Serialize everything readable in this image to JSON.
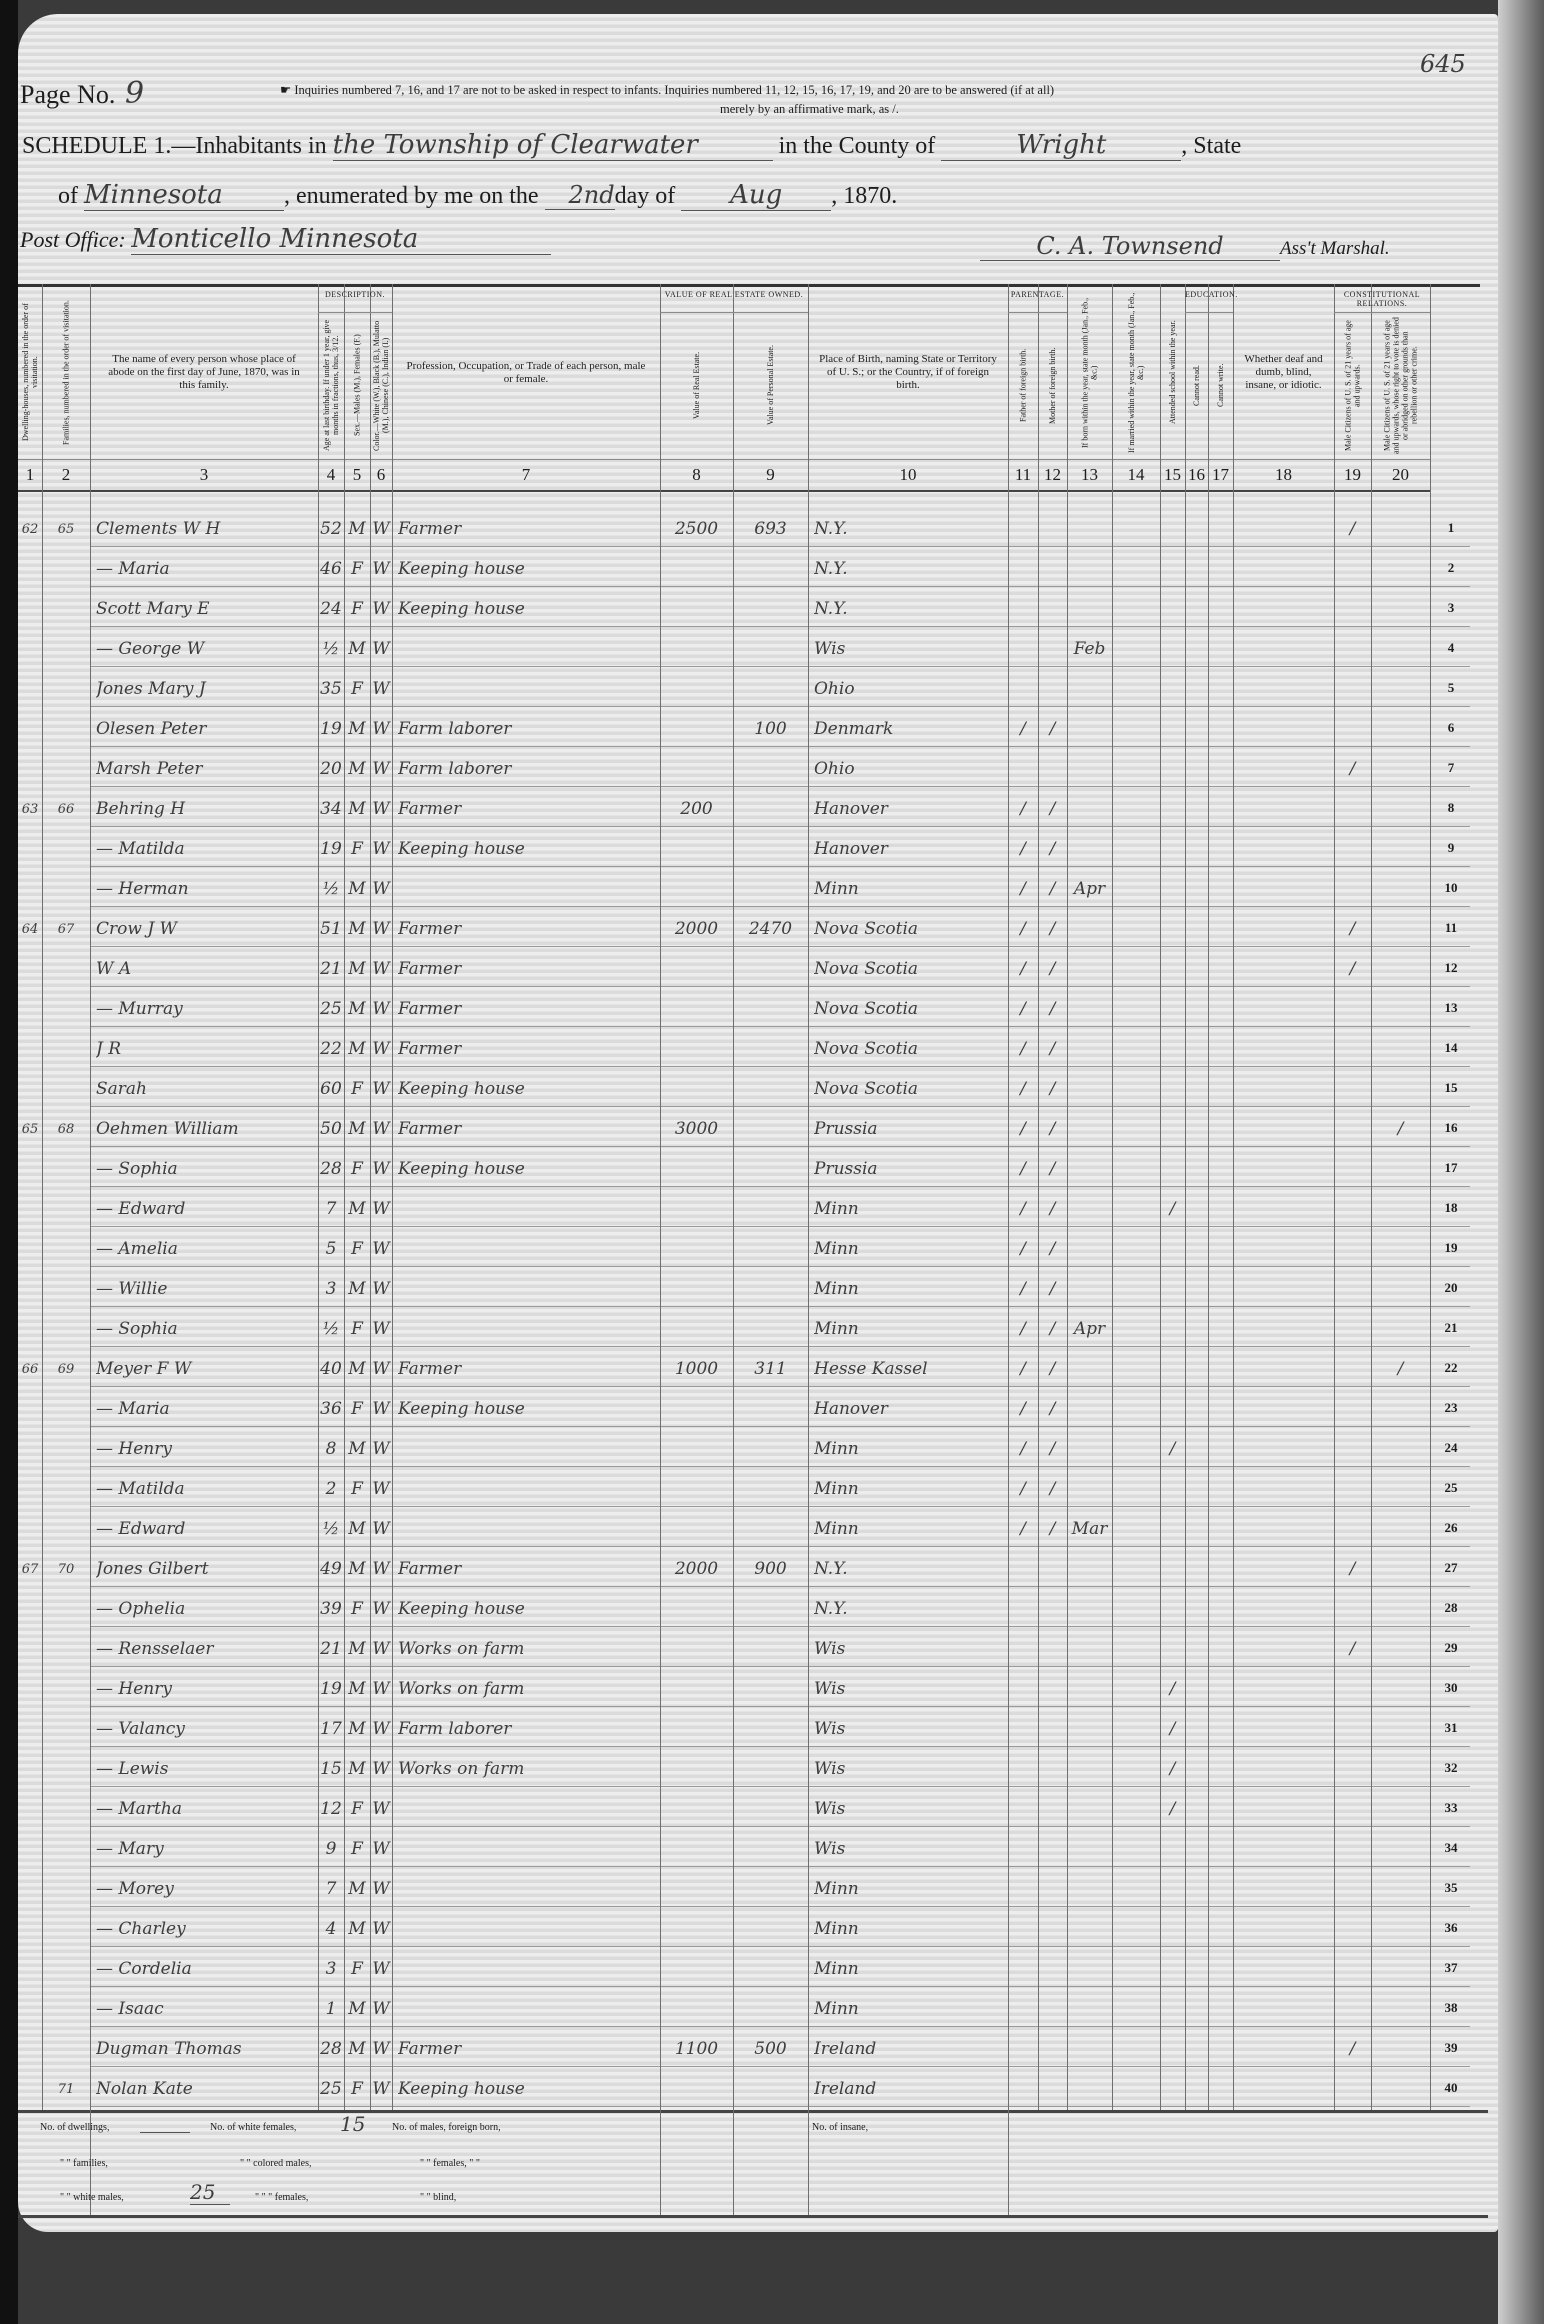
{
  "page": {
    "page_label": "Page No.",
    "page_number": "9",
    "stamp_number": "645",
    "instructions_line1": "Inquiries numbered 7, 16, and 17 are not to be asked in respect to infants. Inquiries numbered 11, 12, 15, 16, 17, 19, and 20 are to be answered (if at all)",
    "instructions_line2": "merely by an affirmative mark, as /.",
    "schedule_label": "SCHEDULE 1.—Inhabitants in",
    "township": "the Township of Clearwater",
    "county_label": "in the County of",
    "county": "Wright",
    "state_label": ", State",
    "of_label": "of",
    "state": "Minnesota",
    "enumerated_label": ", enumerated by me on the",
    "day": "2nd",
    "day_label": "day of",
    "month": "Aug",
    "year": ", 1870.",
    "post_office_label": "Post Office:",
    "post_office": "Monticello Minnesota",
    "marshal_name": "C. A. Townsend",
    "marshal_label": "Ass't Marshal."
  },
  "groups": {
    "description": "Description.",
    "real_estate": "Value of Real Estate owned.",
    "parentage": "Parentage.",
    "education": "Education.",
    "constitutional": "Constitutional Relations."
  },
  "columns": [
    {
      "num": "1",
      "header": "Dwelling-houses, numbered in the order of visitation."
    },
    {
      "num": "2",
      "header": "Families, numbered in the order of visitation."
    },
    {
      "num": "3",
      "header": "The name of every person whose place of abode on the first day of June, 1870, was in this family."
    },
    {
      "num": "4",
      "header": "Age at last birthday. If under 1 year, give months in fractions, thus, 3/12."
    },
    {
      "num": "5",
      "header": "Sex.—Males (M.), Females (F.)"
    },
    {
      "num": "6",
      "header": "Color.—White (W.), Black (B.), Mulatto (M.), Chinese (C.), Indian (I.)"
    },
    {
      "num": "7",
      "header": "Profession, Occupation, or Trade of each person, male or female."
    },
    {
      "num": "8",
      "header": "Value of Real Estate."
    },
    {
      "num": "9",
      "header": "Value of Personal Estate."
    },
    {
      "num": "10",
      "header": "Place of Birth, naming State or Territory of U. S.; or the Country, if of foreign birth."
    },
    {
      "num": "11",
      "header": "Father of foreign birth."
    },
    {
      "num": "12",
      "header": "Mother of foreign birth."
    },
    {
      "num": "13",
      "header": "If born within the year, state month (Jan., Feb., &c.)"
    },
    {
      "num": "14",
      "header": "If married within the year, state month (Jan., Feb., &c.)"
    },
    {
      "num": "15",
      "header": "Attended school within the year."
    },
    {
      "num": "16",
      "header": "Cannot read."
    },
    {
      "num": "17",
      "header": "Cannot write."
    },
    {
      "num": "18",
      "header": "Whether deaf and dumb, blind, insane, or idiotic."
    },
    {
      "num": "19",
      "header": "Male Citizens of U. S. of 21 years of age and upwards."
    },
    {
      "num": "20",
      "header": "Male Citizens of U. S. of 21 years of age and upwards, whose right to vote is denied or abridged on other grounds than rebellion or other crime."
    }
  ],
  "rows": [
    {
      "line": "1",
      "cells": [
        "62",
        "65",
        "Clements   W H",
        "52",
        "M",
        "W",
        "Farmer",
        "2500",
        "693",
        "N.Y.",
        "",
        "",
        "",
        "",
        "",
        "",
        "",
        "",
        "/",
        ""
      ]
    },
    {
      "line": "2",
      "cells": [
        "",
        "",
        "—   Maria",
        "46",
        "F",
        "W",
        "Keeping house",
        "",
        "",
        "N.Y.",
        "",
        "",
        "",
        "",
        "",
        "",
        "",
        "",
        "",
        ""
      ]
    },
    {
      "line": "3",
      "cells": [
        "",
        "",
        "Scott   Mary E",
        "24",
        "F",
        "W",
        "Keeping house",
        "",
        "",
        "N.Y.",
        "",
        "",
        "",
        "",
        "",
        "",
        "",
        "",
        "",
        ""
      ]
    },
    {
      "line": "4",
      "cells": [
        "",
        "",
        "—   George W",
        "½",
        "M",
        "W",
        "",
        "",
        "",
        "Wis",
        "",
        "",
        "Feb",
        "",
        "",
        "",
        "",
        "",
        "",
        ""
      ]
    },
    {
      "line": "5",
      "cells": [
        "",
        "",
        "Jones   Mary J",
        "35",
        "F",
        "W",
        "",
        "",
        "",
        "Ohio",
        "",
        "",
        "",
        "",
        "",
        "",
        "",
        "",
        "",
        ""
      ]
    },
    {
      "line": "6",
      "cells": [
        "",
        "",
        "Olesen   Peter",
        "19",
        "M",
        "W",
        "Farm laborer",
        "",
        "100",
        "Denmark",
        "/",
        "/",
        "",
        "",
        "",
        "",
        "",
        "",
        "",
        ""
      ]
    },
    {
      "line": "7",
      "cells": [
        "",
        "",
        "Marsh   Peter",
        "20",
        "M",
        "W",
        "Farm laborer",
        "",
        "",
        "Ohio",
        "",
        "",
        "",
        "",
        "",
        "",
        "",
        "",
        "/",
        ""
      ]
    },
    {
      "line": "8",
      "cells": [
        "63",
        "66",
        "Behring   H",
        "34",
        "M",
        "W",
        "Farmer",
        "200",
        "",
        "Hanover",
        "/",
        "/",
        "",
        "",
        "",
        "",
        "",
        "",
        "",
        ""
      ]
    },
    {
      "line": "9",
      "cells": [
        "",
        "",
        "—   Matilda",
        "19",
        "F",
        "W",
        "Keeping house",
        "",
        "",
        "Hanover",
        "/",
        "/",
        "",
        "",
        "",
        "",
        "",
        "",
        "",
        ""
      ]
    },
    {
      "line": "10",
      "cells": [
        "",
        "",
        "—   Herman",
        "½",
        "M",
        "W",
        "",
        "",
        "",
        "Minn",
        "/",
        "/",
        "Apr",
        "",
        "",
        "",
        "",
        "",
        "",
        ""
      ]
    },
    {
      "line": "11",
      "cells": [
        "64",
        "67",
        "Crow   J W",
        "51",
        "M",
        "W",
        "Farmer",
        "2000",
        "2470",
        "Nova Scotia",
        "/",
        "/",
        "",
        "",
        "",
        "",
        "",
        "",
        "/",
        ""
      ]
    },
    {
      "line": "12",
      "cells": [
        "",
        "",
        "W A",
        "21",
        "M",
        "W",
        "Farmer",
        "",
        "",
        "Nova Scotia",
        "/",
        "/",
        "",
        "",
        "",
        "",
        "",
        "",
        "/",
        ""
      ]
    },
    {
      "line": "13",
      "cells": [
        "",
        "",
        "—   Murray",
        "25",
        "M",
        "W",
        "Farmer",
        "",
        "",
        "Nova Scotia",
        "/",
        "/",
        "",
        "",
        "",
        "",
        "",
        "",
        "",
        ""
      ]
    },
    {
      "line": "14",
      "cells": [
        "",
        "",
        "J R",
        "22",
        "M",
        "W",
        "Farmer",
        "",
        "",
        "Nova Scotia",
        "/",
        "/",
        "",
        "",
        "",
        "",
        "",
        "",
        "",
        ""
      ]
    },
    {
      "line": "15",
      "cells": [
        "",
        "",
        "Sarah",
        "60",
        "F",
        "W",
        "Keeping house",
        "",
        "",
        "Nova Scotia",
        "/",
        "/",
        "",
        "",
        "",
        "",
        "",
        "",
        "",
        ""
      ]
    },
    {
      "line": "16",
      "cells": [
        "65",
        "68",
        "Oehmen   William",
        "50",
        "M",
        "W",
        "Farmer",
        "3000",
        "",
        "Prussia",
        "/",
        "/",
        "",
        "",
        "",
        "",
        "",
        "",
        "",
        "/"
      ]
    },
    {
      "line": "17",
      "cells": [
        "",
        "",
        "—   Sophia",
        "28",
        "F",
        "W",
        "Keeping house",
        "",
        "",
        "Prussia",
        "/",
        "/",
        "",
        "",
        "",
        "",
        "",
        "",
        "",
        ""
      ]
    },
    {
      "line": "18",
      "cells": [
        "",
        "",
        "—   Edward",
        "7",
        "M",
        "W",
        "",
        "",
        "",
        "Minn",
        "/",
        "/",
        "",
        "",
        "/",
        "",
        "",
        "",
        "",
        ""
      ]
    },
    {
      "line": "19",
      "cells": [
        "",
        "",
        "—   Amelia",
        "5",
        "F",
        "W",
        "",
        "",
        "",
        "Minn",
        "/",
        "/",
        "",
        "",
        "",
        "",
        "",
        "",
        "",
        ""
      ]
    },
    {
      "line": "20",
      "cells": [
        "",
        "",
        "—   Willie",
        "3",
        "M",
        "W",
        "",
        "",
        "",
        "Minn",
        "/",
        "/",
        "",
        "",
        "",
        "",
        "",
        "",
        "",
        ""
      ]
    },
    {
      "line": "21",
      "cells": [
        "",
        "",
        "—   Sophia",
        "½",
        "F",
        "W",
        "",
        "",
        "",
        "Minn",
        "/",
        "/",
        "Apr",
        "",
        "",
        "",
        "",
        "",
        "",
        ""
      ]
    },
    {
      "line": "22",
      "cells": [
        "66",
        "69",
        "Meyer   F W",
        "40",
        "M",
        "W",
        "Farmer",
        "1000",
        "311",
        "Hesse Kassel",
        "/",
        "/",
        "",
        "",
        "",
        "",
        "",
        "",
        "",
        "/"
      ]
    },
    {
      "line": "23",
      "cells": [
        "",
        "",
        "—   Maria",
        "36",
        "F",
        "W",
        "Keeping house",
        "",
        "",
        "Hanover",
        "/",
        "/",
        "",
        "",
        "",
        "",
        "",
        "",
        "",
        ""
      ]
    },
    {
      "line": "24",
      "cells": [
        "",
        "",
        "—   Henry",
        "8",
        "M",
        "W",
        "",
        "",
        "",
        "Minn",
        "/",
        "/",
        "",
        "",
        "/",
        "",
        "",
        "",
        "",
        ""
      ]
    },
    {
      "line": "25",
      "cells": [
        "",
        "",
        "—   Matilda",
        "2",
        "F",
        "W",
        "",
        "",
        "",
        "Minn",
        "/",
        "/",
        "",
        "",
        "",
        "",
        "",
        "",
        "",
        ""
      ]
    },
    {
      "line": "26",
      "cells": [
        "",
        "",
        "—   Edward",
        "½",
        "M",
        "W",
        "",
        "",
        "",
        "Minn",
        "/",
        "/",
        "Mar",
        "",
        "",
        "",
        "",
        "",
        "",
        ""
      ]
    },
    {
      "line": "27",
      "cells": [
        "67",
        "70",
        "Jones   Gilbert",
        "49",
        "M",
        "W",
        "Farmer",
        "2000",
        "900",
        "N.Y.",
        "",
        "",
        "",
        "",
        "",
        "",
        "",
        "",
        "/",
        ""
      ]
    },
    {
      "line": "28",
      "cells": [
        "",
        "",
        "—   Ophelia",
        "39",
        "F",
        "W",
        "Keeping house",
        "",
        "",
        "N.Y.",
        "",
        "",
        "",
        "",
        "",
        "",
        "",
        "",
        "",
        ""
      ]
    },
    {
      "line": "29",
      "cells": [
        "",
        "",
        "—   Rensselaer",
        "21",
        "M",
        "W",
        "Works on farm",
        "",
        "",
        "Wis",
        "",
        "",
        "",
        "",
        "",
        "",
        "",
        "",
        "/",
        ""
      ]
    },
    {
      "line": "30",
      "cells": [
        "",
        "",
        "—   Henry",
        "19",
        "M",
        "W",
        "Works on farm",
        "",
        "",
        "Wis",
        "",
        "",
        "",
        "",
        "/",
        "",
        "",
        "",
        "",
        ""
      ]
    },
    {
      "line": "31",
      "cells": [
        "",
        "",
        "—   Valancy",
        "17",
        "M",
        "W",
        "Farm laborer",
        "",
        "",
        "Wis",
        "",
        "",
        "",
        "",
        "/",
        "",
        "",
        "",
        "",
        ""
      ]
    },
    {
      "line": "32",
      "cells": [
        "",
        "",
        "—   Lewis",
        "15",
        "M",
        "W",
        "Works on farm",
        "",
        "",
        "Wis",
        "",
        "",
        "",
        "",
        "/",
        "",
        "",
        "",
        "",
        ""
      ]
    },
    {
      "line": "33",
      "cells": [
        "",
        "",
        "—   Martha",
        "12",
        "F",
        "W",
        "",
        "",
        "",
        "Wis",
        "",
        "",
        "",
        "",
        "/",
        "",
        "",
        "",
        "",
        ""
      ]
    },
    {
      "line": "34",
      "cells": [
        "",
        "",
        "—   Mary",
        "9",
        "F",
        "W",
        "",
        "",
        "",
        "Wis",
        "",
        "",
        "",
        "",
        "",
        "",
        "",
        "",
        "",
        ""
      ]
    },
    {
      "line": "35",
      "cells": [
        "",
        "",
        "—   Morey",
        "7",
        "M",
        "W",
        "",
        "",
        "",
        "Minn",
        "",
        "",
        "",
        "",
        "",
        "",
        "",
        "",
        "",
        ""
      ]
    },
    {
      "line": "36",
      "cells": [
        "",
        "",
        "—   Charley",
        "4",
        "M",
        "W",
        "",
        "",
        "",
        "Minn",
        "",
        "",
        "",
        "",
        "",
        "",
        "",
        "",
        "",
        ""
      ]
    },
    {
      "line": "37",
      "cells": [
        "",
        "",
        "—   Cordelia",
        "3",
        "F",
        "W",
        "",
        "",
        "",
        "Minn",
        "",
        "",
        "",
        "",
        "",
        "",
        "",
        "",
        "",
        ""
      ]
    },
    {
      "line": "38",
      "cells": [
        "",
        "",
        "—   Isaac",
        "1",
        "M",
        "W",
        "",
        "",
        "",
        "Minn",
        "",
        "",
        "",
        "",
        "",
        "",
        "",
        "",
        "",
        ""
      ]
    },
    {
      "line": "39",
      "cells": [
        "",
        "",
        "Dugman   Thomas",
        "28",
        "M",
        "W",
        "Farmer",
        "1100",
        "500",
        "Ireland",
        "",
        "",
        "",
        "",
        "",
        "",
        "",
        "",
        "/",
        ""
      ]
    },
    {
      "line": "40",
      "cells": [
        "",
        "71",
        "Nolan   Kate",
        "25",
        "F",
        "W",
        "Keeping house",
        "",
        "",
        "Ireland",
        "",
        "",
        "",
        "",
        "",
        "",
        "",
        "",
        "",
        ""
      ]
    }
  ],
  "footer": {
    "dwellings_label": "No. of dwellings,",
    "dwellings": "",
    "white_females_label": "No. of white females,",
    "white_females": "15",
    "males_foreign_label": "No. of males, foreign born,",
    "families_label": "\" \" families,",
    "colored_males_label": "\" \" colored males,",
    "females_foreign_label": "\" \" females, \" \"",
    "white_males_label": "\" \" white males,",
    "white_males": "25",
    "colored_females_label": "\" \" \" females,",
    "blind_label": "\" \" blind,",
    "insane_label": "No. of insane,"
  }
}
